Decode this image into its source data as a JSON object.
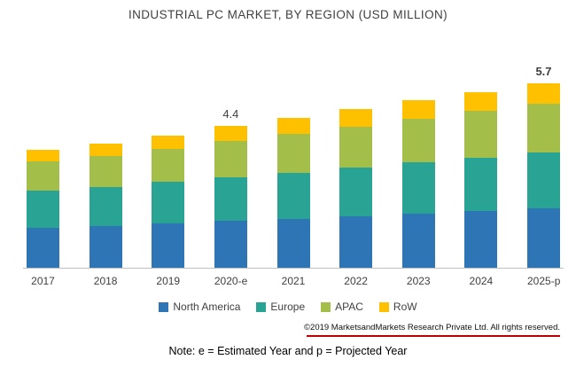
{
  "title": "INDUSTRIAL PC MARKET, BY REGION (USD MILLION)",
  "chart_data": {
    "type": "bar",
    "stacked": true,
    "title": "INDUSTRIAL PC MARKET, BY REGION (USD MILLION)",
    "xlabel": "",
    "ylabel": "",
    "units": "USD Million",
    "legend_position": "bottom",
    "grid": false,
    "categories": [
      "2017",
      "2018",
      "2019",
      "2020-e",
      "2021",
      "2022",
      "2023",
      "2024",
      "2025-p"
    ],
    "series": [
      {
        "name": "North America",
        "color": "#2e75b5",
        "values": [
          1.25,
          1.3,
          1.38,
          1.45,
          1.52,
          1.6,
          1.68,
          1.76,
          1.84
        ]
      },
      {
        "name": "Europe",
        "color": "#29a393",
        "values": [
          1.15,
          1.21,
          1.28,
          1.36,
          1.43,
          1.5,
          1.58,
          1.66,
          1.73
        ]
      },
      {
        "name": "APAC",
        "color": "#a3bf4a",
        "values": [
          0.9,
          0.95,
          1.02,
          1.11,
          1.19,
          1.27,
          1.35,
          1.44,
          1.51
        ]
      },
      {
        "name": "RoW",
        "color": "#ffc000",
        "values": [
          0.35,
          0.38,
          0.42,
          0.48,
          0.51,
          0.55,
          0.58,
          0.58,
          0.62
        ]
      }
    ],
    "totals": [
      3.65,
      3.84,
      4.1,
      4.4,
      4.65,
      4.92,
      5.19,
      5.44,
      5.7
    ],
    "annotations": [
      {
        "category": "2020-e",
        "text": "4.4",
        "bold": false
      },
      {
        "category": "2025-p",
        "text": "5.7",
        "bold": true
      }
    ]
  },
  "footer": {
    "copyright": "©2019 MarketsandMarkets Research Private Ltd. All rights reserved.",
    "note": "Note: e = Estimated Year and p = Projected Year"
  },
  "style_colors": {
    "title_text": "#404040",
    "axis_line": "#bfbfbf",
    "divider_red": "#c00000"
  }
}
